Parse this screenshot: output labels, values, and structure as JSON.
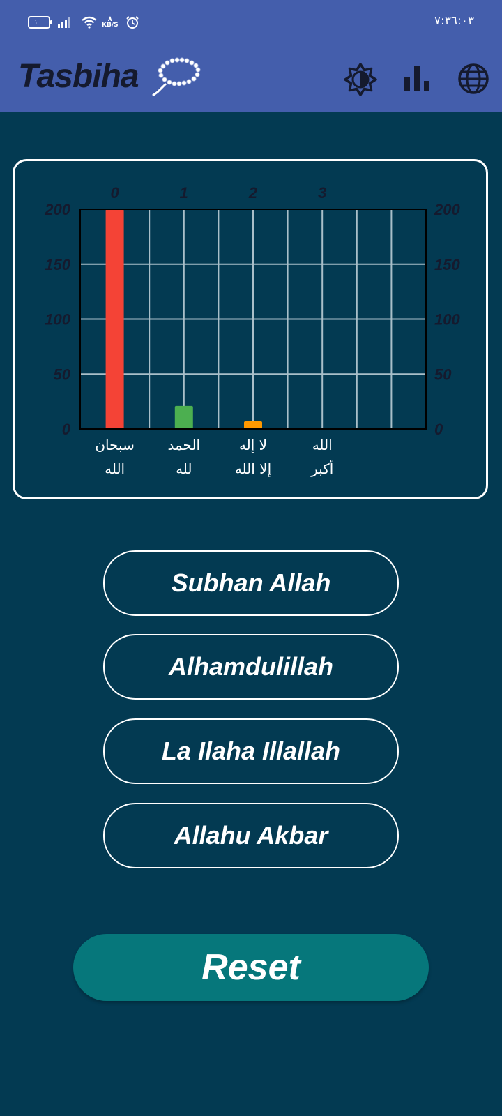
{
  "status_bar": {
    "battery": "١٠٠",
    "network_speed_unit": "KB/S",
    "network_speed_value": "٨",
    "time": "٧:٣٦:٠٣"
  },
  "app_bar": {
    "title": "Tasbiha",
    "icons": [
      "prayer-beads-icon",
      "brightness-icon",
      "bar-chart-icon",
      "globe-icon"
    ]
  },
  "colors": {
    "app_bar": "#445eac",
    "background": "#033a52",
    "reset": "#06777b"
  },
  "chart_data": {
    "type": "bar",
    "categories": [
      "سبحان\nالله",
      "الحمد\nلله",
      "لا إله\nإلا الله",
      "الله\nأكبر"
    ],
    "top_ticks": [
      "0",
      "1",
      "2",
      "3"
    ],
    "values": [
      200,
      21,
      7,
      0
    ],
    "colors": [
      "#f44336",
      "#4caf50",
      "#ff9800",
      "#2196f3"
    ],
    "yticks": [
      "0",
      "50",
      "100",
      "150",
      "200"
    ],
    "ylim": [
      0,
      200
    ],
    "grid": true
  },
  "buttons": {
    "subhan_allah": "Subhan Allah",
    "alhamdulillah": "Alhamdulillah",
    "la_ilaha_illallah": "La Ilaha Illallah",
    "allahu_akbar": "Allahu Akbar",
    "reset": "Reset"
  }
}
